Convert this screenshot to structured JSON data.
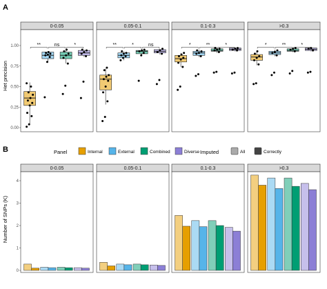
{
  "panel_a_letter": "A",
  "panel_b_letter": "B",
  "legend": {
    "panel_title": "Panel",
    "panel_items": [
      {
        "label": "Internal",
        "color": "#e69f00"
      },
      {
        "label": "External",
        "color": "#56b4e9"
      },
      {
        "label": "Combined",
        "color": "#009e73"
      },
      {
        "label": "Diverse",
        "color": "#8c7fd6"
      }
    ],
    "imputed_title": "Imputed",
    "imputed_items": [
      {
        "label": "All",
        "color": "#aaaaaa"
      },
      {
        "label": "Correctly",
        "color": "#444444"
      }
    ]
  },
  "chart_data": [
    {
      "type": "box",
      "panel": "A",
      "ylabel": "Het precision",
      "ylim": [
        0,
        1.0
      ],
      "yticks": [
        "0.00",
        "0.25",
        "0.50",
        "0.75",
        "1.00"
      ],
      "facets": [
        "0-0.05",
        "0.05-0.1",
        "0.1-0.3",
        ">0.3"
      ],
      "groups": [
        "Internal",
        "External",
        "Combined",
        "Diverse"
      ],
      "boxes": [
        [
          {
            "q1": 0.27,
            "median": 0.36,
            "q3": 0.44,
            "whisker_low": 0.05,
            "whisker_high": 0.55,
            "points": [
              0.01,
              0.04,
              0.14,
              0.18,
              0.27,
              0.3,
              0.33,
              0.36,
              0.4,
              0.43,
              0.5,
              0.54
            ]
          },
          {
            "q1": 0.84,
            "median": 0.88,
            "q3": 0.92,
            "whisker_low": 0.8,
            "whisker_high": 0.93,
            "points": [
              0.37,
              0.8,
              0.86,
              0.88,
              0.89,
              0.9,
              0.91,
              0.92
            ]
          },
          {
            "q1": 0.84,
            "median": 0.88,
            "q3": 0.92,
            "whisker_low": 0.78,
            "whisker_high": 0.95,
            "points": [
              0.41,
              0.51,
              0.78,
              0.85,
              0.88,
              0.9,
              0.93,
              0.95
            ]
          },
          {
            "q1": 0.88,
            "median": 0.91,
            "q3": 0.94,
            "whisker_low": 0.86,
            "whisker_high": 0.95,
            "points": [
              0.36,
              0.56,
              0.87,
              0.9,
              0.92,
              0.94,
              0.95
            ]
          }
        ],
        [
          {
            "q1": 0.46,
            "median": 0.59,
            "q3": 0.64,
            "whisker_low": 0.28,
            "whisker_high": 0.72,
            "points": [
              0.08,
              0.13,
              0.32,
              0.43,
              0.5,
              0.57,
              0.59,
              0.62,
              0.64,
              0.7,
              0.73
            ]
          },
          {
            "q1": 0.85,
            "median": 0.88,
            "q3": 0.91,
            "whisker_low": 0.82,
            "whisker_high": 0.93,
            "points": [
              0.82,
              0.85,
              0.87,
              0.88,
              0.9,
              0.91,
              0.93
            ]
          },
          {
            "q1": 0.9,
            "median": 0.93,
            "q3": 0.94,
            "whisker_low": 0.88,
            "whisker_high": 0.96,
            "points": [
              0.57,
              0.88,
              0.91,
              0.93,
              0.94,
              0.95
            ]
          },
          {
            "q1": 0.91,
            "median": 0.93,
            "q3": 0.95,
            "whisker_low": 0.89,
            "whisker_high": 0.96,
            "points": [
              0.53,
              0.58,
              0.9,
              0.92,
              0.94,
              0.96
            ]
          }
        ],
        [
          {
            "q1": 0.8,
            "median": 0.84,
            "q3": 0.88,
            "whisker_low": 0.74,
            "whisker_high": 0.91,
            "points": [
              0.46,
              0.5,
              0.74,
              0.79,
              0.83,
              0.85,
              0.87,
              0.89,
              0.91
            ]
          },
          {
            "q1": 0.88,
            "median": 0.91,
            "q3": 0.93,
            "whisker_low": 0.86,
            "whisker_high": 0.95,
            "points": [
              0.63,
              0.65,
              0.87,
              0.9,
              0.91,
              0.93,
              0.94
            ]
          },
          {
            "q1": 0.93,
            "median": 0.94,
            "q3": 0.96,
            "whisker_low": 0.91,
            "whisker_high": 0.97,
            "points": [
              0.67,
              0.68,
              0.92,
              0.94,
              0.95,
              0.96,
              0.97
            ]
          },
          {
            "q1": 0.94,
            "median": 0.955,
            "q3": 0.97,
            "whisker_low": 0.93,
            "whisker_high": 0.98,
            "points": [
              0.66,
              0.67,
              0.94,
              0.95,
              0.96,
              0.97
            ]
          }
        ],
        [
          {
            "q1": 0.82,
            "median": 0.86,
            "q3": 0.89,
            "whisker_low": 0.76,
            "whisker_high": 0.93,
            "points": [
              0.53,
              0.54,
              0.77,
              0.82,
              0.85,
              0.87,
              0.9,
              0.93
            ]
          },
          {
            "q1": 0.89,
            "median": 0.91,
            "q3": 0.93,
            "whisker_low": 0.87,
            "whisker_high": 0.95,
            "points": [
              0.64,
              0.67,
              0.88,
              0.91,
              0.92,
              0.94
            ]
          },
          {
            "q1": 0.93,
            "median": 0.94,
            "q3": 0.96,
            "whisker_low": 0.92,
            "whisker_high": 0.97,
            "points": [
              0.66,
              0.69,
              0.93,
              0.95,
              0.96,
              0.97
            ]
          },
          {
            "q1": 0.94,
            "median": 0.955,
            "q3": 0.97,
            "whisker_low": 0.93,
            "whisker_high": 0.98,
            "points": [
              0.67,
              0.68,
              0.94,
              0.96,
              0.97
            ]
          }
        ]
      ],
      "significance": [
        [
          {
            "from": 0,
            "to": 1,
            "label": "**",
            "y": 0.98
          },
          {
            "from": 1,
            "to": 2,
            "label": "ns",
            "y": 0.98
          },
          {
            "from": 2,
            "to": 3,
            "label": "*",
            "y": 0.98
          }
        ],
        [
          {
            "from": 0,
            "to": 1,
            "label": "**",
            "y": 0.98
          },
          {
            "from": 1,
            "to": 2,
            "label": "*",
            "y": 0.98
          },
          {
            "from": 2,
            "to": 3,
            "label": "ns",
            "y": 0.98
          }
        ],
        [
          {
            "from": 0,
            "to": 1,
            "label": "*",
            "y": 0.98
          },
          {
            "from": 1,
            "to": 2,
            "label": "**",
            "y": 0.98
          },
          {
            "from": 2,
            "to": 3,
            "label": "*",
            "y": 0.98
          }
        ],
        [
          {
            "from": 0,
            "to": 1,
            "label": "*",
            "y": 0.98
          },
          {
            "from": 1,
            "to": 2,
            "label": "**",
            "y": 0.98
          },
          {
            "from": 2,
            "to": 3,
            "label": "*",
            "y": 0.98
          }
        ]
      ]
    },
    {
      "type": "bar",
      "panel": "B",
      "ylabel": "Number of SNPs (K)",
      "ylim": [
        0,
        4.4
      ],
      "yticks": [
        "0",
        "1",
        "2",
        "3",
        "4"
      ],
      "facets": [
        "0-0.05",
        "0.05-0.1",
        "0.1-0.3",
        ">0.3"
      ],
      "groups": [
        "Internal",
        "External",
        "Combined",
        "Diverse"
      ],
      "series": [
        {
          "name": "All",
          "values": [
            [
              0.28,
              0.14,
              0.14,
              0.12
            ],
            [
              0.36,
              0.28,
              0.28,
              0.24
            ],
            [
              2.45,
              2.22,
              2.22,
              1.92
            ],
            [
              4.25,
              4.12,
              4.12,
              3.88
            ]
          ]
        },
        {
          "name": "Correctly",
          "values": [
            [
              0.1,
              0.12,
              0.12,
              0.1
            ],
            [
              0.2,
              0.25,
              0.25,
              0.22
            ],
            [
              1.97,
              1.95,
              2.0,
              1.75
            ],
            [
              3.8,
              3.65,
              3.75,
              3.6
            ]
          ]
        }
      ]
    }
  ]
}
